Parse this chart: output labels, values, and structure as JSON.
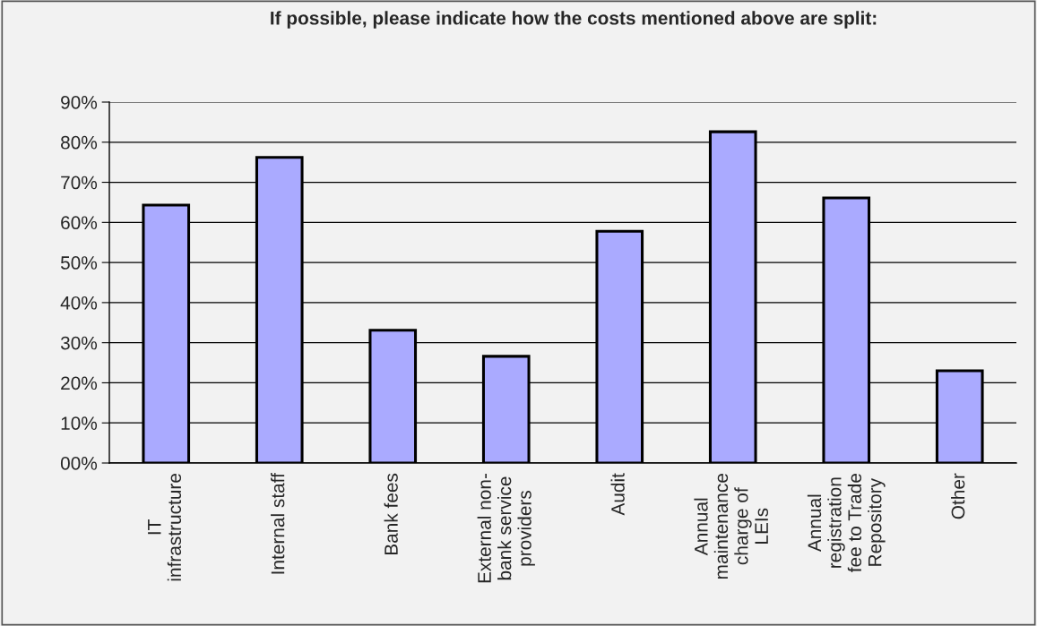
{
  "chart_data": {
    "type": "bar",
    "title": "If possible, please indicate how the costs mentioned above are split:",
    "categories": [
      "IT\ninfrastructure",
      "Internal staff",
      "Bank fees",
      "External non-\nbank service\nproviders",
      "Audit",
      "Annual\nmaintenance\ncharge of\nLEIs",
      "Annual\nregistration\nfee to Trade\nRepository",
      "Other"
    ],
    "values": [
      64.3,
      76.2,
      33.1,
      26.6,
      57.8,
      82.6,
      66.1,
      23.0
    ],
    "color": "#aaaaff",
    "ylim": [
      0,
      90
    ],
    "yticks": [
      {
        "value": 0,
        "label": "00%"
      },
      {
        "value": 10,
        "label": "10%"
      },
      {
        "value": 20,
        "label": "20%"
      },
      {
        "value": 30,
        "label": "30%"
      },
      {
        "value": 40,
        "label": "40%"
      },
      {
        "value": 50,
        "label": "50%"
      },
      {
        "value": 60,
        "label": "60%"
      },
      {
        "value": 70,
        "label": "70%"
      },
      {
        "value": 80,
        "label": "80%"
      },
      {
        "value": 90,
        "label": "90%"
      }
    ],
    "grid": "y",
    "legend": false
  }
}
